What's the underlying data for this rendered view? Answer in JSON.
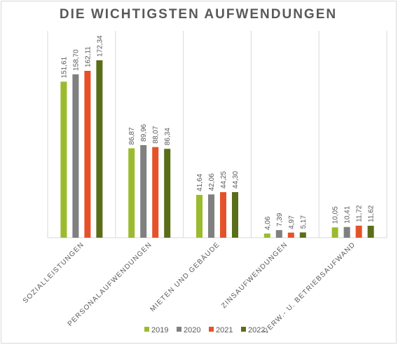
{
  "chart_data": {
    "type": "bar",
    "title": "DIE WICHTIGSTEN AUFWENDUNGEN",
    "categories": [
      "SOZIALLEISTUNGEN",
      "PERSONALAUFWENDUNGEN",
      "MIETEN UND GEBÄUDE",
      "ZINSAUFWENDUNGEN",
      "VERW.- U. BETRIEBSAUFWAND"
    ],
    "series": [
      {
        "name": "2019",
        "color": "#9bbb2f",
        "values": [
          151.61,
          86.87,
          41.64,
          4.06,
          10.05
        ],
        "labels": [
          "151,61",
          "86,87",
          "41,64",
          "4,06",
          "10,05"
        ]
      },
      {
        "name": "2020",
        "color": "#808080",
        "values": [
          158.7,
          89.96,
          42.06,
          7.39,
          10.41
        ],
        "labels": [
          "158,70",
          "89,96",
          "42,06",
          "7,39",
          "10,41"
        ]
      },
      {
        "name": "2021",
        "color": "#e5522a",
        "values": [
          162.11,
          88.07,
          44.25,
          4.97,
          11.72
        ],
        "labels": [
          "162,11",
          "88,07",
          "44,25",
          "4,97",
          "11,72"
        ]
      },
      {
        "name": "2022",
        "color": "#5a6e1a",
        "values": [
          172.34,
          86.34,
          44.3,
          5.17,
          11.62
        ],
        "labels": [
          "172,34",
          "86,34",
          "44,30",
          "5,17",
          "11,62"
        ]
      }
    ],
    "xlabel": "",
    "ylabel": "",
    "ylim": [
      0,
      172.34
    ],
    "grid": true,
    "legend_position": "bottom"
  }
}
